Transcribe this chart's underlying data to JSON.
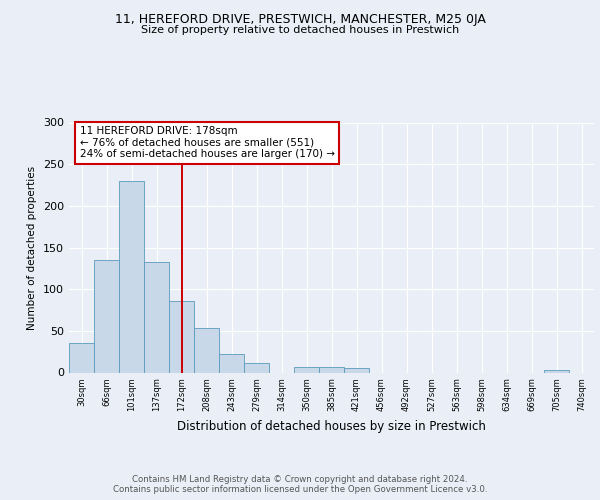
{
  "title1": "11, HEREFORD DRIVE, PRESTWICH, MANCHESTER, M25 0JA",
  "title2": "Size of property relative to detached houses in Prestwich",
  "xlabel": "Distribution of detached houses by size in Prestwich",
  "ylabel": "Number of detached properties",
  "bins": [
    "30sqm",
    "66sqm",
    "101sqm",
    "137sqm",
    "172sqm",
    "208sqm",
    "243sqm",
    "279sqm",
    "314sqm",
    "350sqm",
    "385sqm",
    "421sqm",
    "456sqm",
    "492sqm",
    "527sqm",
    "563sqm",
    "598sqm",
    "634sqm",
    "669sqm",
    "705sqm",
    "740sqm"
  ],
  "values": [
    35,
    135,
    230,
    133,
    86,
    53,
    22,
    12,
    0,
    7,
    7,
    6,
    0,
    0,
    0,
    0,
    0,
    0,
    0,
    3,
    0
  ],
  "bar_color": "#c8d8e8",
  "bar_edge_color": "#5b9bbf",
  "highlight_line_color": "#cc0000",
  "annotation_line1": "11 HEREFORD DRIVE: 178sqm",
  "annotation_line2": "← 76% of detached houses are smaller (551)",
  "annotation_line3": "24% of semi-detached houses are larger (170) →",
  "annotation_box_color": "#ffffff",
  "annotation_box_edge": "#cc0000",
  "footer": "Contains HM Land Registry data © Crown copyright and database right 2024.\nContains public sector information licensed under the Open Government Licence v3.0.",
  "ylim": [
    0,
    300
  ],
  "yticks": [
    0,
    50,
    100,
    150,
    200,
    250,
    300
  ],
  "bg_color": "#eaeff7",
  "plot_bg_color": "#eaeff7",
  "grid_color": "#ffffff"
}
